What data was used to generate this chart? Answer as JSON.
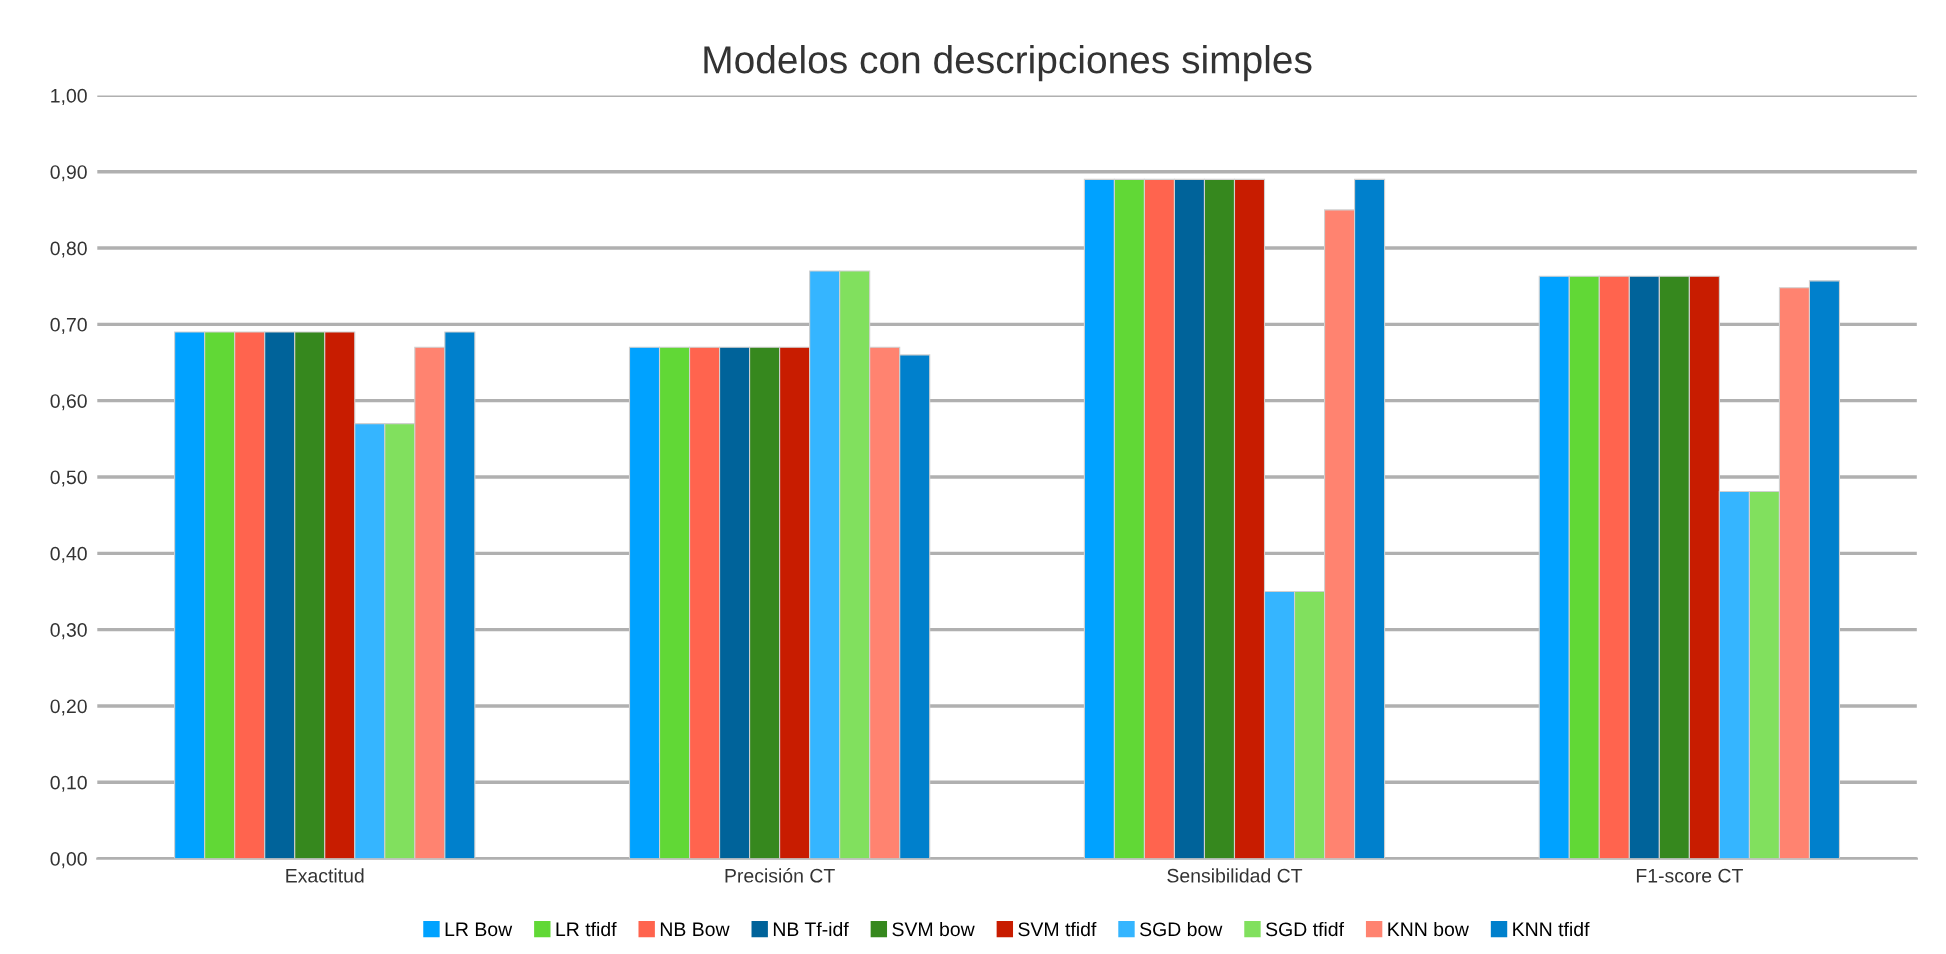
{
  "chart_data": {
    "type": "bar",
    "title": "Modelos con descripciones simples",
    "categories": [
      "Exactitud",
      "Precisión CT",
      "Sensibilidad CT",
      "F1-score CT"
    ],
    "series": [
      {
        "name": "LR Bow",
        "color": "#00a2ff",
        "values": [
          0.69,
          0.67,
          0.89,
          0.763
        ]
      },
      {
        "name": "LR tfidf",
        "color": "#61d836",
        "values": [
          0.69,
          0.67,
          0.89,
          0.763
        ]
      },
      {
        "name": "NB Bow",
        "color": "#ff644e",
        "values": [
          0.69,
          0.67,
          0.89,
          0.763
        ]
      },
      {
        "name": "NB Tf-idf",
        "color": "#00639a",
        "values": [
          0.69,
          0.67,
          0.89,
          0.763
        ]
      },
      {
        "name": "SVM bow",
        "color": "#36881e",
        "values": [
          0.69,
          0.67,
          0.89,
          0.763
        ]
      },
      {
        "name": "SVM tfidf",
        "color": "#c81c00",
        "values": [
          0.69,
          0.67,
          0.89,
          0.763
        ]
      },
      {
        "name": "SGD bow",
        "color": "#35b5ff",
        "values": [
          0.57,
          0.77,
          0.35,
          0.481
        ]
      },
      {
        "name": "SGD tfidf",
        "color": "#81e05e",
        "values": [
          0.57,
          0.77,
          0.35,
          0.481
        ]
      },
      {
        "name": "KNN bow",
        "color": "#ff8370",
        "values": [
          0.67,
          0.67,
          0.85,
          0.748
        ]
      },
      {
        "name": "KNN tfidf",
        "color": "#0080cc",
        "values": [
          0.69,
          0.66,
          0.89,
          0.757
        ]
      }
    ],
    "ylim": [
      0,
      1
    ],
    "yticks": [
      {
        "value": 0,
        "label": "0,00"
      },
      {
        "value": 0.1,
        "label": "0,10"
      },
      {
        "value": 0.2,
        "label": "0,20"
      },
      {
        "value": 0.3,
        "label": "0,30"
      },
      {
        "value": 0.4,
        "label": "0,40"
      },
      {
        "value": 0.5,
        "label": "0,50"
      },
      {
        "value": 0.6,
        "label": "0,60"
      },
      {
        "value": 0.7,
        "label": "0,70"
      },
      {
        "value": 0.8,
        "label": "0,80"
      },
      {
        "value": 0.9,
        "label": "0,90"
      },
      {
        "value": 1.0,
        "label": "1,00"
      }
    ],
    "grid": "y",
    "legend": "bottom"
  }
}
